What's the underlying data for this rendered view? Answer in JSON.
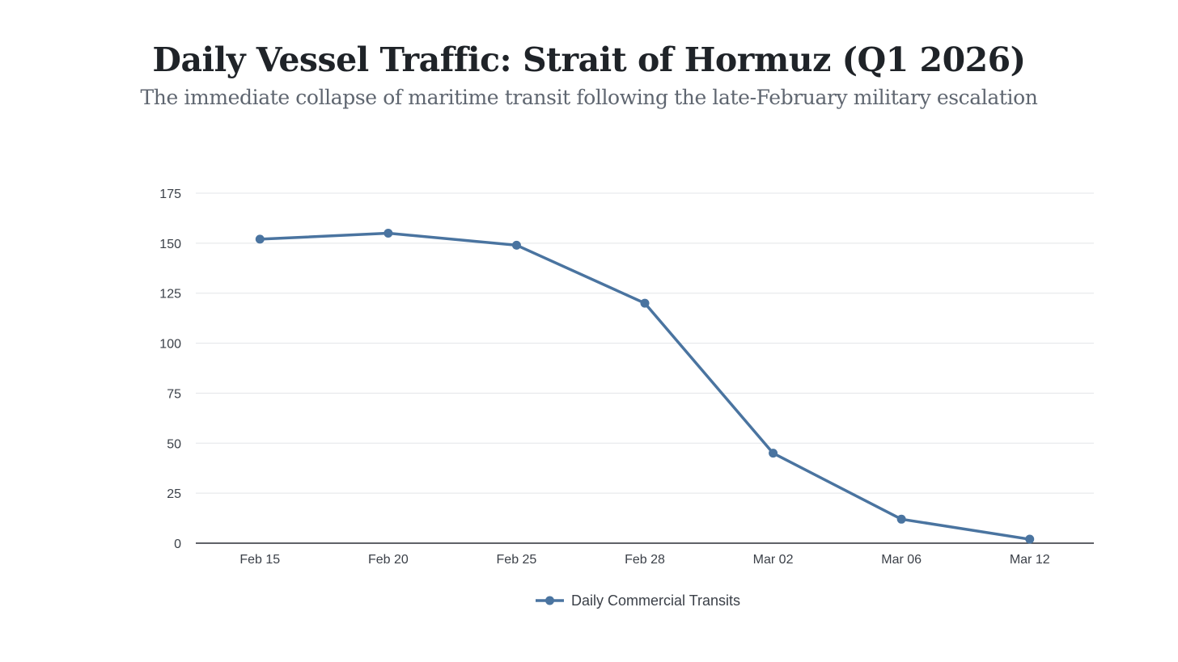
{
  "chart_data": {
    "type": "line",
    "title": "Daily Vessel Traffic: Strait of Hormuz (Q1 2026)",
    "subtitle": "The immediate collapse of maritime transit following the late-February military escalation",
    "categories": [
      "Feb 15",
      "Feb 20",
      "Feb 25",
      "Feb 28",
      "Mar 02",
      "Mar 06",
      "Mar 12"
    ],
    "series": [
      {
        "name": "Daily Commercial Transits",
        "values": [
          152,
          155,
          149,
          120,
          45,
          12,
          2
        ],
        "color": "#4a74a0"
      }
    ],
    "yticks": [
      0,
      25,
      50,
      75,
      100,
      125,
      150,
      175
    ],
    "ylim": [
      0,
      175
    ],
    "grid": true,
    "legend": "bottom-center",
    "xlabel": "",
    "ylabel": ""
  }
}
